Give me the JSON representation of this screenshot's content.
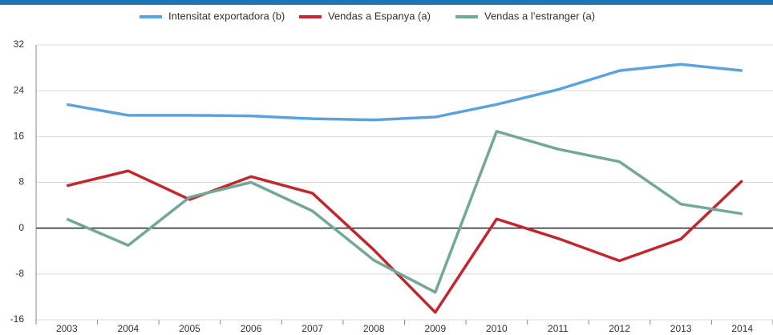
{
  "chart_data": {
    "type": "line",
    "categories": [
      "2003",
      "2004",
      "2005",
      "2006",
      "2007",
      "2008",
      "2009",
      "2010",
      "2011",
      "2012",
      "2013",
      "2014"
    ],
    "series": [
      {
        "name": "Intensitat exportadora (b)",
        "color": "#5aa3dc",
        "values": [
          21.6,
          19.7,
          19.7,
          19.6,
          19.1,
          18.9,
          19.4,
          21.6,
          24.2,
          27.5,
          28.6,
          27.5
        ]
      },
      {
        "name": "Vendas a Espanya (a)",
        "color": "#c1272d",
        "values": [
          7.4,
          10,
          5,
          9,
          6.1,
          -3.8,
          -14.7,
          1.6,
          -1.8,
          -5.7,
          -1.9,
          8.3
        ]
      },
      {
        "name": "Vendas a l’estranger (a)",
        "color": "#73a899",
        "values": [
          1.6,
          -3,
          5.4,
          8,
          3,
          -5.6,
          -11.2,
          16.9,
          13.8,
          11.6,
          4.2,
          2.5
        ]
      }
    ],
    "ylim": [
      -16,
      32
    ],
    "yticks": [
      -16,
      -8,
      0,
      8,
      16,
      24,
      32
    ],
    "grid": true
  }
}
